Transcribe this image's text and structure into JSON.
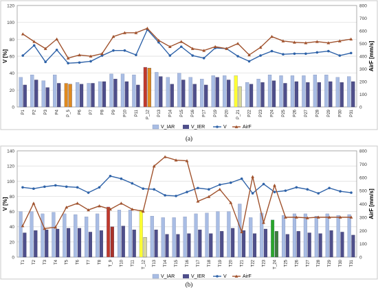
{
  "captions": {
    "a": "(a)",
    "b": "(b)"
  },
  "colors": {
    "iar": "#a9bde4",
    "ier": "#4f4f8b",
    "v_line": "#2e62a8",
    "airf_line": "#a0522d",
    "hl_red": "#c0392b",
    "hl_orange": "#e08a1e",
    "hl_yellow": "#ffff33",
    "hl_green": "#2aa52a"
  },
  "chart_data": [
    {
      "type": "bar",
      "ylabel": "V [%]",
      "y2label": "AirF [mm/s]",
      "ylim": [
        0,
        120
      ],
      "y2lim": [
        0,
        800
      ],
      "yticks": [
        0,
        20,
        40,
        60,
        80,
        100,
        120
      ],
      "y2ticks": [
        0,
        100,
        200,
        300,
        400,
        500,
        600,
        700,
        800
      ],
      "grid": true,
      "legend": "bottom",
      "legend_labels": [
        "V_IAR",
        "V_IER",
        "V",
        "AirF"
      ],
      "categories": [
        "P1",
        "P2",
        "P3",
        "P4",
        "P_5",
        "P6",
        "P7",
        "P8",
        "P9",
        "P10",
        "P11",
        "P_12",
        "P13",
        "P14",
        "P15",
        "P16",
        "P17",
        "P19",
        "P20",
        "P_21",
        "P22",
        "P23",
        "P24",
        "P25",
        "P26",
        "P27",
        "P28",
        "P29",
        "P30",
        "P31"
      ],
      "highlights": {
        "P_5": "orange",
        "P_12": "red_orange",
        "P_21": "yellow"
      },
      "series": [
        {
          "name": "V_IAR",
          "axis": "left",
          "kind": "bar",
          "values": [
            35,
            38,
            31,
            38,
            28,
            29,
            28,
            30,
            39,
            39,
            38,
            47,
            41,
            35,
            40,
            35,
            33,
            37,
            37,
            37,
            29,
            33,
            38,
            37,
            37,
            37,
            38,
            38,
            35,
            36
          ]
        },
        {
          "name": "V_IER",
          "axis": "left",
          "kind": "bar",
          "values": [
            26,
            32,
            23,
            28,
            27,
            27,
            28,
            30,
            33,
            30,
            26,
            46,
            36,
            27,
            32,
            27,
            26,
            35,
            32,
            24,
            27,
            29,
            31,
            28,
            30,
            29,
            29,
            30,
            29,
            30
          ]
        },
        {
          "name": "V",
          "axis": "right",
          "kind": "line",
          "values": [
            405,
            485,
            355,
            450,
            345,
            350,
            360,
            405,
            445,
            445,
            410,
            610,
            510,
            405,
            475,
            405,
            385,
            465,
            460,
            400,
            360,
            405,
            440,
            415,
            420,
            420,
            430,
            440,
            405,
            425
          ]
        },
        {
          "name": "AirF",
          "axis": "right",
          "kind": "line",
          "values": [
            575,
            515,
            460,
            535,
            385,
            410,
            400,
            420,
            555,
            585,
            585,
            620,
            525,
            475,
            515,
            460,
            445,
            475,
            460,
            500,
            410,
            470,
            555,
            520,
            510,
            505,
            515,
            505,
            520,
            535
          ]
        }
      ]
    },
    {
      "type": "bar",
      "ylabel": "V [%]",
      "y2label": "AirF [mm/s]",
      "ylim": [
        0,
        140
      ],
      "y2lim": [
        0,
        800
      ],
      "yticks": [
        0,
        20,
        40,
        60,
        80,
        100,
        120,
        140
      ],
      "y2ticks": [
        0,
        100,
        200,
        300,
        400,
        500,
        600,
        700,
        800
      ],
      "grid": true,
      "legend": "bottom",
      "legend_labels": [
        "V_IAR",
        "V_IER",
        "V",
        "AirF"
      ],
      "categories": [
        "T1",
        "T2",
        "T3",
        "T4",
        "T5",
        "T6",
        "T7",
        "T8",
        "T_9",
        "T10",
        "T11",
        "T_12",
        "T13",
        "T14",
        "T15",
        "T16",
        "T17",
        "T18",
        "T19",
        "T20",
        "T21",
        "T22",
        "T23",
        "T_24",
        "T25",
        "T26",
        "T27",
        "T28",
        "T29",
        "T30",
        "T31"
      ],
      "highlights": {
        "T_9": "red",
        "T_12": "yellow",
        "T_24": "green"
      },
      "series": [
        {
          "name": "V_IAR",
          "axis": "left",
          "kind": "bar",
          "values": [
            60,
            60,
            57,
            59,
            57,
            56,
            53,
            57,
            66,
            62,
            62,
            62,
            54,
            52,
            52,
            53,
            57,
            58,
            60,
            60,
            70,
            52,
            58,
            49,
            55,
            57,
            57,
            54,
            57,
            55,
            56
          ]
        },
        {
          "name": "V_IER",
          "axis": "left",
          "kind": "bar",
          "values": [
            32,
            35,
            36,
            37,
            38,
            38,
            33,
            35,
            40,
            41,
            36,
            26,
            36,
            30,
            30,
            31,
            36,
            31,
            34,
            38,
            35,
            31,
            37,
            34,
            30,
            34,
            32,
            31,
            35,
            33,
            29
          ]
        },
        {
          "name": "V",
          "axis": "right",
          "kind": "line",
          "values": [
            525,
            515,
            530,
            540,
            530,
            525,
            485,
            525,
            610,
            590,
            555,
            515,
            510,
            465,
            460,
            490,
            520,
            510,
            545,
            560,
            590,
            480,
            550,
            490,
            500,
            525,
            510,
            480,
            520,
            495,
            485
          ]
        },
        {
          "name": "AirF",
          "axis": "right",
          "kind": "line",
          "values": [
            235,
            405,
            215,
            225,
            375,
            405,
            355,
            385,
            360,
            405,
            360,
            345,
            685,
            755,
            730,
            725,
            420,
            455,
            510,
            410,
            190,
            605,
            260,
            540,
            300,
            300,
            295,
            300,
            300,
            300,
            300
          ]
        }
      ]
    }
  ]
}
